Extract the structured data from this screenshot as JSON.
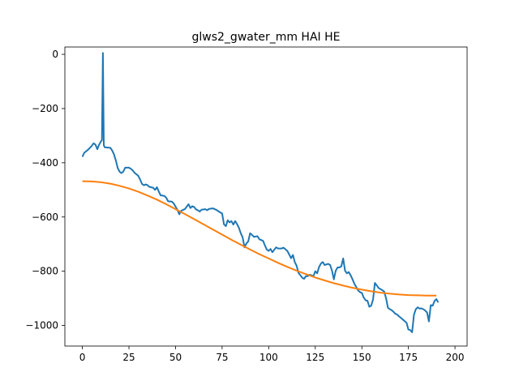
{
  "chart_data": {
    "type": "line",
    "title": "glws2_gwater_mm HAI HE",
    "xlabel": "",
    "ylabel": "",
    "xlim": [
      -9.4,
      206.5
    ],
    "ylim": [
      -1076,
      27
    ],
    "xticks": [
      0,
      25,
      50,
      75,
      100,
      125,
      150,
      175,
      200
    ],
    "yticks": [
      -1000,
      -800,
      -600,
      -400,
      -200,
      0
    ],
    "grid": false,
    "series": [
      {
        "color": "#1f77b4",
        "points": [
          [
            0,
            -378
          ],
          [
            1,
            -363
          ],
          [
            3,
            -352
          ],
          [
            5,
            -338
          ],
          [
            6,
            -328
          ],
          [
            7,
            -333
          ],
          [
            8,
            -350
          ],
          [
            9,
            -333
          ],
          [
            10,
            -321
          ],
          [
            10.5,
            -316
          ],
          [
            11,
            5
          ],
          [
            11.5,
            -335
          ],
          [
            12,
            -343
          ],
          [
            15,
            -345
          ],
          [
            16,
            -355
          ],
          [
            17,
            -370
          ],
          [
            18,
            -392
          ],
          [
            19,
            -420
          ],
          [
            20,
            -433
          ],
          [
            21,
            -438
          ],
          [
            22,
            -432
          ],
          [
            23,
            -418
          ],
          [
            25,
            -418
          ],
          [
            26,
            -422
          ],
          [
            27,
            -428
          ],
          [
            28,
            -437
          ],
          [
            30,
            -448
          ],
          [
            31,
            -462
          ],
          [
            32,
            -478
          ],
          [
            33,
            -483
          ],
          [
            34,
            -480
          ],
          [
            35,
            -483
          ],
          [
            36,
            -489
          ],
          [
            38,
            -492
          ],
          [
            39,
            -500
          ],
          [
            40,
            -490
          ],
          [
            41,
            -506
          ],
          [
            42,
            -520
          ],
          [
            44,
            -522
          ],
          [
            45,
            -529
          ],
          [
            46,
            -542
          ],
          [
            48,
            -543
          ],
          [
            49,
            -550
          ],
          [
            50,
            -562
          ],
          [
            51,
            -574
          ],
          [
            52,
            -590
          ],
          [
            53,
            -577
          ],
          [
            55,
            -571
          ],
          [
            57,
            -553
          ],
          [
            58,
            -567
          ],
          [
            59,
            -560
          ],
          [
            60,
            -563
          ],
          [
            61,
            -572
          ],
          [
            62,
            -575
          ],
          [
            63,
            -580
          ],
          [
            64,
            -573
          ],
          [
            66,
            -571
          ],
          [
            67,
            -575
          ],
          [
            68,
            -570
          ],
          [
            70,
            -568
          ],
          [
            72,
            -574
          ],
          [
            74,
            -583
          ],
          [
            75,
            -587
          ],
          [
            76,
            -627
          ],
          [
            77,
            -634
          ],
          [
            78,
            -612
          ],
          [
            79,
            -620
          ],
          [
            80,
            -615
          ],
          [
            81,
            -628
          ],
          [
            82,
            -615
          ],
          [
            83,
            -626
          ],
          [
            84,
            -640
          ],
          [
            85,
            -660
          ],
          [
            86,
            -675
          ],
          [
            87,
            -712
          ],
          [
            88,
            -698
          ],
          [
            89,
            -690
          ],
          [
            90,
            -660
          ],
          [
            91,
            -666
          ],
          [
            92,
            -673
          ],
          [
            94,
            -671
          ],
          [
            95,
            -682
          ],
          [
            97,
            -688
          ],
          [
            98,
            -705
          ],
          [
            99,
            -720
          ],
          [
            100,
            -725
          ],
          [
            101,
            -718
          ],
          [
            102,
            -730
          ],
          [
            104,
            -712
          ],
          [
            105,
            -716
          ],
          [
            107,
            -716
          ],
          [
            108,
            -713
          ],
          [
            110,
            -725
          ],
          [
            111,
            -738
          ],
          [
            112,
            -752
          ],
          [
            113,
            -740
          ],
          [
            114,
            -766
          ],
          [
            115,
            -780
          ],
          [
            116,
            -806
          ],
          [
            117,
            -815
          ],
          [
            118,
            -824
          ],
          [
            119,
            -828
          ],
          [
            120,
            -818
          ],
          [
            121,
            -818
          ],
          [
            122,
            -813
          ],
          [
            124,
            -818
          ],
          [
            125,
            -800
          ],
          [
            126,
            -808
          ],
          [
            127,
            -785
          ],
          [
            128,
            -772
          ],
          [
            129,
            -766
          ],
          [
            130,
            -777
          ],
          [
            132,
            -773
          ],
          [
            133,
            -777
          ],
          [
            134,
            -798
          ],
          [
            135,
            -830
          ],
          [
            136,
            -798
          ],
          [
            137,
            -786
          ],
          [
            138,
            -786
          ],
          [
            139,
            -782
          ],
          [
            140,
            -753
          ],
          [
            141,
            -798
          ],
          [
            142,
            -808
          ],
          [
            143,
            -803
          ],
          [
            144,
            -815
          ],
          [
            145,
            -830
          ],
          [
            146,
            -846
          ],
          [
            147,
            -858
          ],
          [
            148,
            -871
          ],
          [
            149,
            -877
          ],
          [
            150,
            -880
          ],
          [
            151,
            -897
          ],
          [
            152,
            -907
          ],
          [
            153,
            -909
          ],
          [
            154,
            -931
          ],
          [
            155,
            -927
          ],
          [
            156,
            -905
          ],
          [
            157,
            -843
          ],
          [
            158,
            -852
          ],
          [
            159,
            -862
          ],
          [
            160,
            -866
          ],
          [
            161,
            -870
          ],
          [
            162,
            -875
          ],
          [
            163,
            -900
          ],
          [
            164,
            -935
          ],
          [
            165,
            -940
          ],
          [
            166,
            -944
          ],
          [
            167,
            -950
          ],
          [
            168,
            -957
          ],
          [
            169,
            -960
          ],
          [
            170,
            -967
          ],
          [
            171,
            -972
          ],
          [
            172,
            -978
          ],
          [
            174,
            -990
          ],
          [
            175,
            -1015
          ],
          [
            176,
            -1017
          ],
          [
            177,
            -1025
          ],
          [
            178,
            -960
          ],
          [
            179,
            -940
          ],
          [
            180,
            -933
          ],
          [
            181,
            -938
          ],
          [
            182,
            -937
          ],
          [
            183,
            -940
          ],
          [
            184,
            -945
          ],
          [
            185,
            -952
          ],
          [
            186,
            -985
          ],
          [
            187,
            -925
          ],
          [
            188,
            -927
          ],
          [
            189,
            -910
          ],
          [
            190,
            -903
          ],
          [
            191,
            -915
          ]
        ]
      },
      {
        "color": "#ff7f0e",
        "points": [
          [
            0,
            -468
          ],
          [
            5,
            -469
          ],
          [
            10,
            -472
          ],
          [
            15,
            -477
          ],
          [
            20,
            -485
          ],
          [
            25,
            -495
          ],
          [
            30,
            -507
          ],
          [
            35,
            -521
          ],
          [
            40,
            -536
          ],
          [
            45,
            -553
          ],
          [
            50,
            -571
          ],
          [
            55,
            -589
          ],
          [
            60,
            -608
          ],
          [
            65,
            -627
          ],
          [
            70,
            -646
          ],
          [
            75,
            -665
          ],
          [
            80,
            -684
          ],
          [
            85,
            -702
          ],
          [
            90,
            -720
          ],
          [
            95,
            -737
          ],
          [
            100,
            -753
          ],
          [
            105,
            -769
          ],
          [
            110,
            -784
          ],
          [
            115,
            -798
          ],
          [
            120,
            -811
          ],
          [
            125,
            -823
          ],
          [
            130,
            -834
          ],
          [
            135,
            -844
          ],
          [
            140,
            -853
          ],
          [
            145,
            -861
          ],
          [
            150,
            -868
          ],
          [
            155,
            -874
          ],
          [
            160,
            -879
          ],
          [
            165,
            -883
          ],
          [
            170,
            -886
          ],
          [
            175,
            -888
          ],
          [
            180,
            -889
          ],
          [
            185,
            -890
          ],
          [
            190,
            -890
          ]
        ]
      }
    ]
  }
}
